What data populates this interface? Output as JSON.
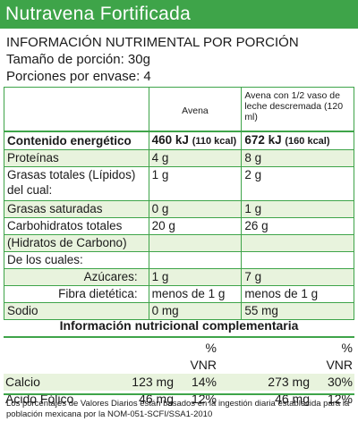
{
  "banner": {
    "title": "Nutravena Fortificada"
  },
  "header": {
    "title": "INFORMACIÓN NUTRIMENTAL POR PORCIÓN",
    "serving": "Tamaño de porción: 30g",
    "servings_per_pack": "Porciones por envase: 4"
  },
  "columns": {
    "col1": "Avena",
    "col2": "Avena con 1/2 vaso de leche descremada (120 ml)"
  },
  "energy": {
    "label": "Contenido energético",
    "v1": "460 kJ",
    "v1_small": "(110 kcal)",
    "v2": "672 kJ",
    "v2_small": "(160 kcal)"
  },
  "rows": [
    {
      "label": "Proteínas",
      "v1": "4 g",
      "v2": "8 g"
    },
    {
      "label": "Grasas totales (Lípidos) del cual:",
      "v1": "1 g",
      "v2": "2 g"
    },
    {
      "label": "Grasas saturadas",
      "v1": "0 g",
      "v2": "1 g"
    },
    {
      "label": "Carbohidratos totales",
      "v1": "20 g",
      "v2": "26 g"
    },
    {
      "label": "(Hidratos de Carbono)",
      "v1": "",
      "v2": ""
    },
    {
      "label": "De los cuales:",
      "v1": "",
      "v2": ""
    },
    {
      "label": "Azúcares:",
      "v1": "1 g",
      "v2": "7 g"
    },
    {
      "label": "Fibra dietética:",
      "v1": "menos de 1 g",
      "v2": "menos de 1 g"
    },
    {
      "label": "Sodio",
      "v1": "0 mg",
      "v2": "55 mg"
    }
  ],
  "complementary": {
    "title": "Información nutricional complementaria",
    "vnr_label": "% VNR",
    "rows": [
      {
        "label": "Calcio",
        "a1": "123 mg",
        "p1": "14%",
        "a2": "273 mg",
        "p2": "30%"
      },
      {
        "label": "Acido Fólico",
        "a1": "46 mg",
        "p1": "12%",
        "a2": "46 mg",
        "p2": "12%"
      }
    ]
  },
  "footnote": "Los porcentajes de Valores Diarios están basados en la ingestión diaria establecida para la población mexicana por la NOM-051-SCFI/SSA1-2010"
}
